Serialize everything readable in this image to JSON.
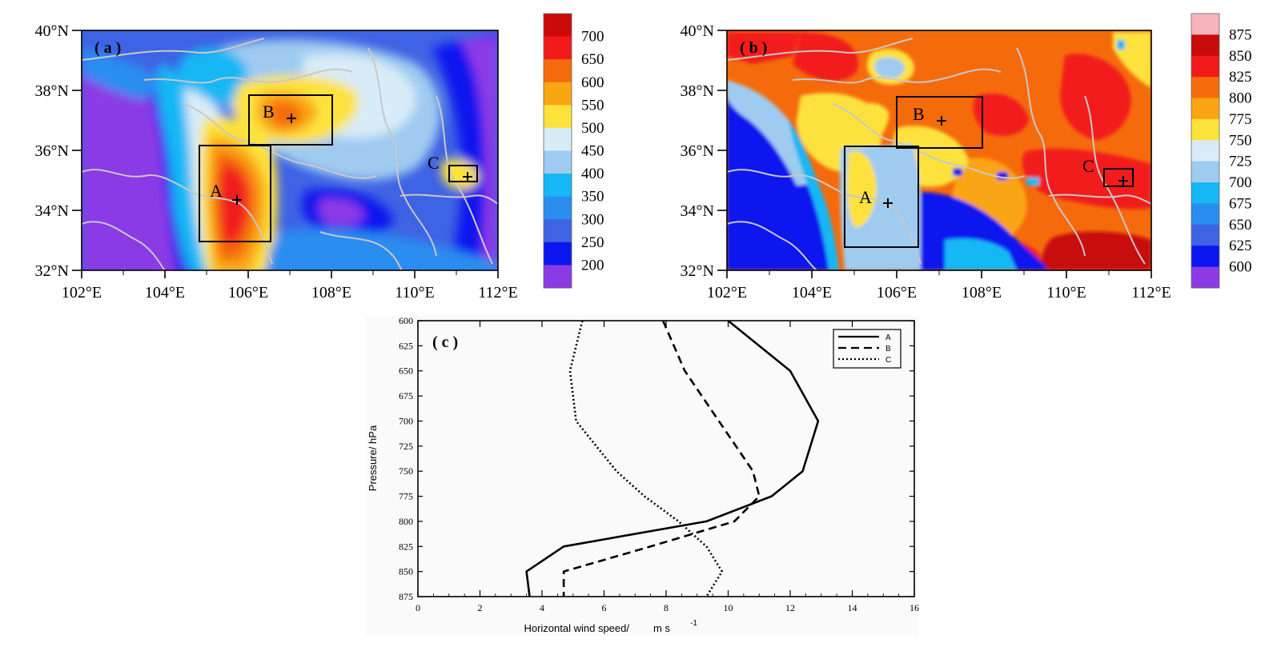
{
  "panel_a": {
    "label": "( a )",
    "lat_labels": [
      "40°N",
      "38°N",
      "36°N",
      "34°N",
      "32°N"
    ],
    "lon_labels": [
      "102°E",
      "104°E",
      "106°E",
      "108°E",
      "110°E",
      "112°E"
    ],
    "colorbar_labels": [
      "700",
      "650",
      "600",
      "550",
      "500",
      "450",
      "400",
      "350",
      "300",
      "250",
      "200"
    ],
    "colorbar_colors": [
      "#cc0a0a",
      "#f21a1a",
      "#f56b0c",
      "#faa512",
      "#fde23c",
      "#d8ecf8",
      "#9fcbf0",
      "#15b7f5",
      "#2b8df0",
      "#3e63e4",
      "#0c16ee",
      "#8b3ae6"
    ],
    "boxes": [
      {
        "name": "A"
      },
      {
        "name": "B"
      },
      {
        "name": "C"
      }
    ]
  },
  "panel_b": {
    "label": "( b )",
    "lat_labels": [
      "40°N",
      "38°N",
      "36°N",
      "34°N",
      "32°N"
    ],
    "lon_labels": [
      "102°E",
      "104°E",
      "106°E",
      "108°E",
      "110°E",
      "112°E"
    ],
    "colorbar_labels": [
      "875",
      "850",
      "825",
      "800",
      "775",
      "750",
      "725",
      "700",
      "675",
      "650",
      "625",
      "600"
    ],
    "colorbar_colors": [
      "#f8b3bd",
      "#c80b0b",
      "#f21a1a",
      "#f56b0c",
      "#faa512",
      "#fde23c",
      "#d8ecf8",
      "#9fcbf0",
      "#15b7f5",
      "#2b8df0",
      "#3e63e4",
      "#0c16ee",
      "#8b3ae6"
    ],
    "boxes": [
      {
        "name": "A"
      },
      {
        "name": "B"
      },
      {
        "name": "C"
      }
    ]
  },
  "chart_data": {
    "type": "line",
    "panel_label": "( c )",
    "xlabel": "Horizontal wind speed/",
    "xunit": "m  s",
    "xunit_exp": "-1",
    "ylabel": "Pressure/   hPa",
    "xlim": [
      0,
      16
    ],
    "ylim": [
      875,
      600
    ],
    "x_ticks": [
      "0",
      "2",
      "4",
      "6",
      "8",
      "10",
      "12",
      "14",
      "16"
    ],
    "y_ticks": [
      "600",
      "625",
      "650",
      "675",
      "700",
      "725",
      "750",
      "775",
      "800",
      "825",
      "850",
      "875"
    ],
    "legend_position": "top-right",
    "pressure": [
      600,
      650,
      700,
      750,
      775,
      800,
      825,
      850,
      875
    ],
    "series": [
      {
        "name": "A",
        "style": "solid",
        "values": [
          10.0,
          12.0,
          12.9,
          12.4,
          11.4,
          9.3,
          4.7,
          3.5,
          3.6
        ]
      },
      {
        "name": "B",
        "style": "dashed",
        "values": [
          7.9,
          8.6,
          9.7,
          10.8,
          11.0,
          10.2,
          7.5,
          4.7,
          4.7
        ]
      },
      {
        "name": "C",
        "style": "dotted",
        "values": [
          5.3,
          4.9,
          5.1,
          6.4,
          7.3,
          8.4,
          9.3,
          9.8,
          9.3
        ]
      }
    ]
  }
}
